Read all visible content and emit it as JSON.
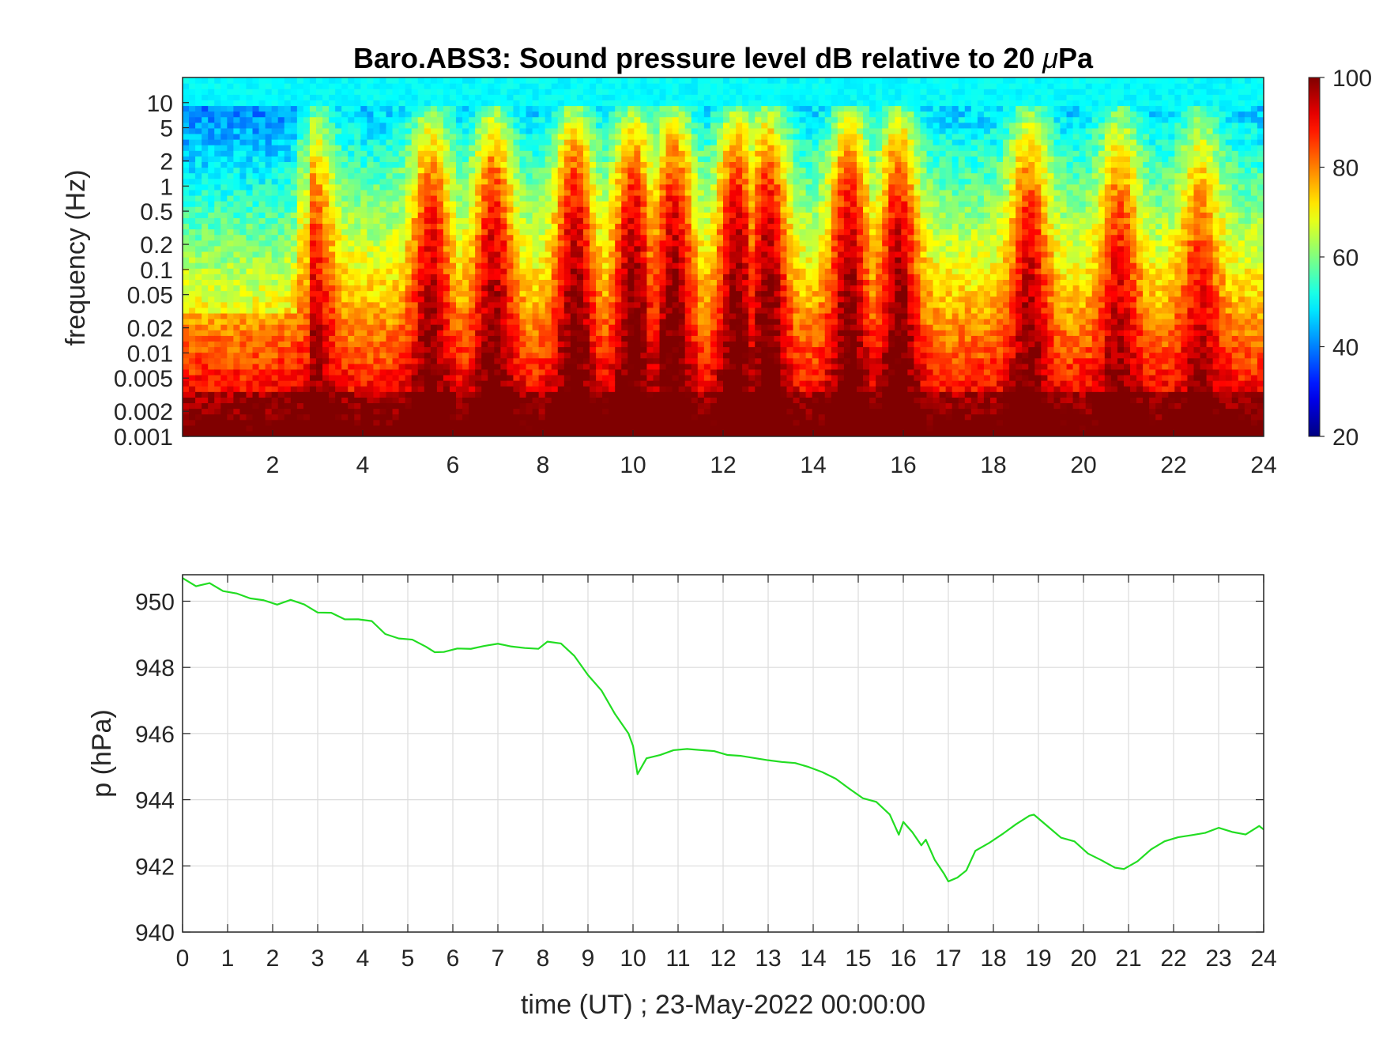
{
  "chart_data": [
    {
      "type": "heatmap",
      "title_text": "Baro.ABS3: Sound pressure level dB relative to 20 ",
      "title_mu": "μ",
      "title_unit": "Pa",
      "ylabel": "frequency (Hz)",
      "xlabel": "",
      "x_ticks": [
        "2",
        "4",
        "6",
        "8",
        "10",
        "12",
        "14",
        "16",
        "18",
        "20",
        "22",
        "24"
      ],
      "xlim": [
        0,
        24
      ],
      "y_scale": "log",
      "ylim_hz": [
        0.001,
        20
      ],
      "y_ticks": [
        "10",
        "5",
        "2",
        "1",
        "0.5",
        "0.2",
        "0.1",
        "0.05",
        "0.02",
        "0.01",
        "0.005",
        "0.002",
        "0.001"
      ],
      "colormap": "jet",
      "color_range_db": [
        20,
        100
      ],
      "colorbar_ticks": [
        "100",
        "80",
        "60",
        "40",
        "20"
      ],
      "high_energy_bursts_hours": [
        2.9,
        5.5,
        6.9,
        8.7,
        10.0,
        10.9,
        12.3,
        13.0,
        14.8,
        15.9,
        18.8,
        20.8,
        22.6
      ]
    },
    {
      "type": "line",
      "xlabel": "time (UT) ; 23-May-2022 00:00:00",
      "ylabel": "p (hPa)",
      "xlim": [
        0,
        24
      ],
      "ylim": [
        940,
        950.8
      ],
      "x_ticks": [
        "0",
        "1",
        "2",
        "3",
        "4",
        "5",
        "6",
        "7",
        "8",
        "9",
        "10",
        "11",
        "12",
        "13",
        "14",
        "15",
        "16",
        "17",
        "18",
        "19",
        "20",
        "21",
        "22",
        "23",
        "24"
      ],
      "y_ticks": [
        "950",
        "948",
        "946",
        "944",
        "942",
        "940"
      ],
      "grid": true,
      "line_color": "#22dd22",
      "series": [
        {
          "x": [
            0,
            0.3,
            0.6,
            0.9,
            1.2,
            1.5,
            1.8,
            2.1,
            2.4,
            2.7,
            3.0,
            3.3,
            3.6,
            3.9,
            4.2,
            4.5,
            4.8,
            5.1,
            5.4,
            5.6,
            5.8,
            6.1,
            6.4,
            6.7,
            7.0,
            7.3,
            7.6,
            7.9,
            8.1,
            8.4,
            8.7,
            9.0,
            9.3,
            9.6,
            9.9,
            10.0,
            10.1,
            10.3,
            10.6,
            10.9,
            11.2,
            11.5,
            11.8,
            12.1,
            12.4,
            12.7,
            13.0,
            13.3,
            13.6,
            13.9,
            14.2,
            14.5,
            14.8,
            15.1,
            15.4,
            15.7,
            15.9,
            16.0,
            16.2,
            16.4,
            16.5,
            16.7,
            16.9,
            17.0,
            17.2,
            17.4,
            17.6,
            17.9,
            18.2,
            18.5,
            18.8,
            18.9,
            19.2,
            19.5,
            19.8,
            20.1,
            20.4,
            20.7,
            20.9,
            21.2,
            21.5,
            21.8,
            22.1,
            22.4,
            22.7,
            23.0,
            23.3,
            23.6,
            23.9,
            24.0
          ],
          "y": [
            950.7,
            950.5,
            950.5,
            950.3,
            950.2,
            950.1,
            950.0,
            949.95,
            950.0,
            949.85,
            949.7,
            949.6,
            949.5,
            949.45,
            949.35,
            949.0,
            948.85,
            948.8,
            948.6,
            948.4,
            948.5,
            948.55,
            948.6,
            948.7,
            948.7,
            948.6,
            948.55,
            948.6,
            948.8,
            948.75,
            948.4,
            947.8,
            947.3,
            946.6,
            946.0,
            945.6,
            944.8,
            945.2,
            945.4,
            945.5,
            945.55,
            945.5,
            945.45,
            945.4,
            945.35,
            945.3,
            945.25,
            945.2,
            945.1,
            945.0,
            944.8,
            944.6,
            944.3,
            944.1,
            943.9,
            943.5,
            943.0,
            943.3,
            943.0,
            942.6,
            942.8,
            942.2,
            941.8,
            941.5,
            941.7,
            941.9,
            942.4,
            942.7,
            943.0,
            943.2,
            943.5,
            943.5,
            943.2,
            942.9,
            942.7,
            942.4,
            942.2,
            942.0,
            941.95,
            942.2,
            942.5,
            942.8,
            942.85,
            942.9,
            943.0,
            943.1,
            943.05,
            943.0,
            943.15,
            943.1
          ]
        }
      ]
    }
  ]
}
